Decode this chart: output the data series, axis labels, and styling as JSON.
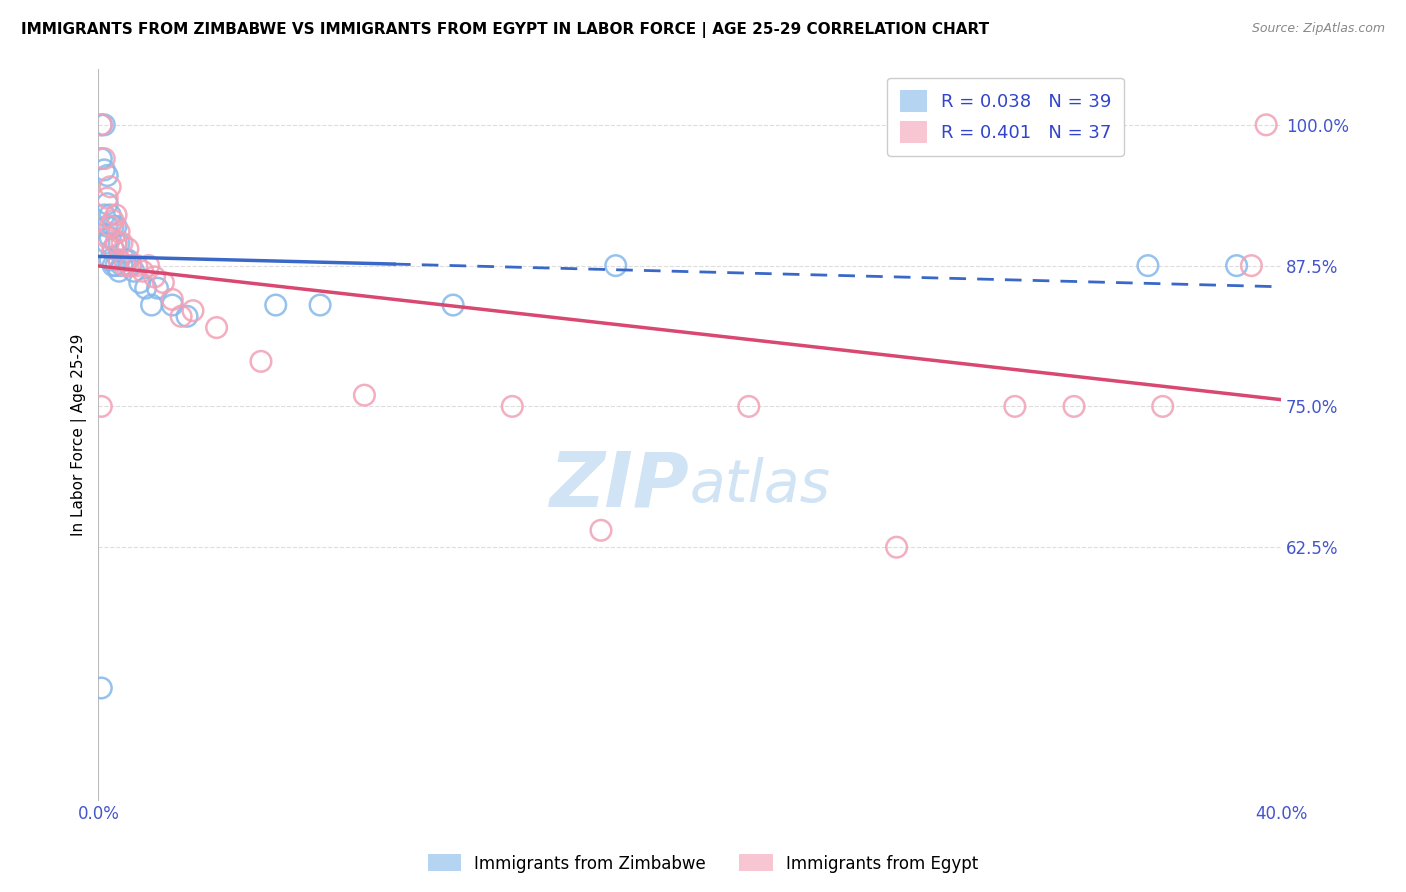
{
  "title": "IMMIGRANTS FROM ZIMBABWE VS IMMIGRANTS FROM EGYPT IN LABOR FORCE | AGE 25-29 CORRELATION CHART",
  "source": "Source: ZipAtlas.com",
  "ylabel": "In Labor Force | Age 25-29",
  "xlim": [
    0.0,
    0.4
  ],
  "ylim": [
    0.4,
    1.05
  ],
  "xticks": [
    0.0,
    0.05,
    0.1,
    0.15,
    0.2,
    0.25,
    0.3,
    0.35,
    0.4
  ],
  "xticklabels": [
    "0.0%",
    "",
    "",
    "",
    "",
    "",
    "",
    "",
    "40.0%"
  ],
  "yticks": [
    0.625,
    0.75,
    0.875,
    1.0
  ],
  "yticklabels": [
    "62.5%",
    "75.0%",
    "87.5%",
    "100.0%"
  ],
  "legend_r_blue": "R = 0.038",
  "legend_n_blue": "N = 39",
  "legend_r_pink": "R = 0.401",
  "legend_n_pink": "N = 37",
  "blue_color": "#85B8EA",
  "pink_color": "#F2A0B5",
  "blue_line_color": "#3A68C8",
  "pink_line_color": "#D84870",
  "grid_color": "#DDDDDD",
  "watermark_color": "#D0E4F5",
  "zimbabwe_x": [
    0.001,
    0.001,
    0.002,
    0.002,
    0.002,
    0.003,
    0.003,
    0.003,
    0.003,
    0.004,
    0.004,
    0.004,
    0.005,
    0.005,
    0.005,
    0.006,
    0.006,
    0.006,
    0.007,
    0.007,
    0.007,
    0.008,
    0.009,
    0.01,
    0.011,
    0.012,
    0.014,
    0.016,
    0.018,
    0.02,
    0.025,
    0.03,
    0.06,
    0.075,
    0.12,
    0.175,
    0.001,
    0.355,
    0.385
  ],
  "zimbabwe_y": [
    1.0,
    0.97,
    1.0,
    0.96,
    0.92,
    0.955,
    0.93,
    0.91,
    0.895,
    0.92,
    0.9,
    0.88,
    0.91,
    0.89,
    0.875,
    0.91,
    0.895,
    0.875,
    0.895,
    0.88,
    0.87,
    0.875,
    0.88,
    0.88,
    0.875,
    0.87,
    0.86,
    0.855,
    0.84,
    0.855,
    0.84,
    0.83,
    0.84,
    0.84,
    0.84,
    0.875,
    0.5,
    0.875,
    0.875
  ],
  "egypt_x": [
    0.001,
    0.002,
    0.003,
    0.003,
    0.004,
    0.004,
    0.005,
    0.005,
    0.006,
    0.006,
    0.007,
    0.007,
    0.008,
    0.009,
    0.01,
    0.011,
    0.013,
    0.015,
    0.017,
    0.019,
    0.022,
    0.025,
    0.028,
    0.032,
    0.04,
    0.055,
    0.09,
    0.14,
    0.17,
    0.22,
    0.27,
    0.31,
    0.33,
    0.36,
    0.39,
    0.395,
    0.001
  ],
  "egypt_y": [
    1.0,
    0.97,
    0.935,
    0.9,
    0.945,
    0.91,
    0.915,
    0.89,
    0.92,
    0.895,
    0.905,
    0.88,
    0.895,
    0.875,
    0.89,
    0.875,
    0.875,
    0.87,
    0.875,
    0.865,
    0.86,
    0.845,
    0.83,
    0.835,
    0.82,
    0.79,
    0.76,
    0.75,
    0.64,
    0.75,
    0.625,
    0.75,
    0.75,
    0.75,
    0.875,
    1.0,
    0.75
  ]
}
